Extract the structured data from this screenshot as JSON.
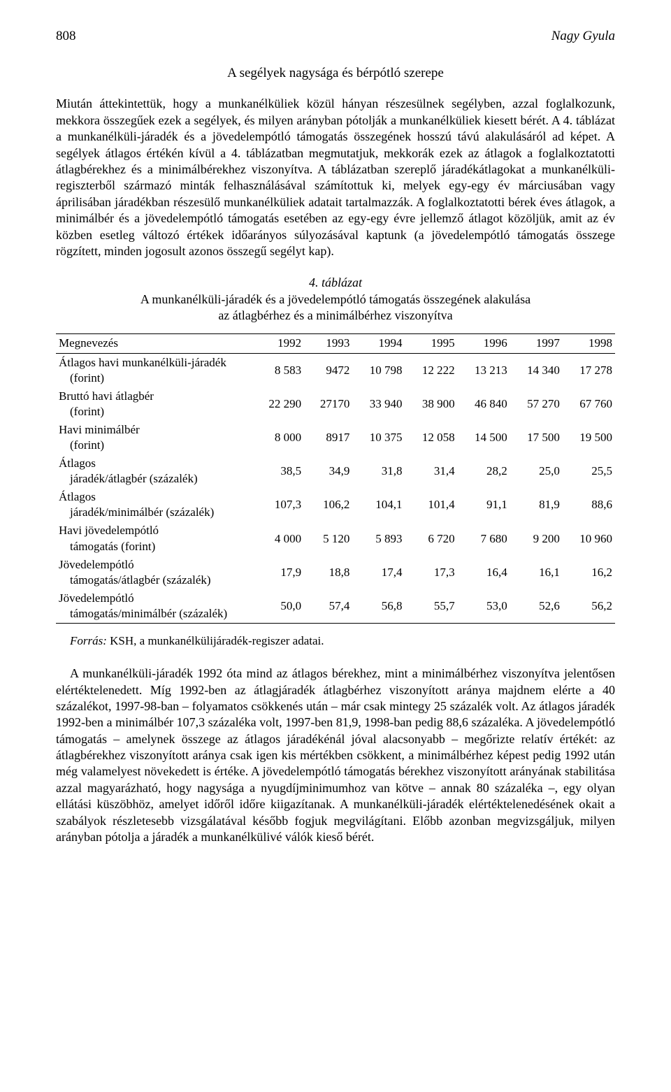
{
  "header": {
    "pageNumber": "808",
    "author": "Nagy Gyula"
  },
  "sectionTitle": "A segélyek nagysága és bérpótló szerepe",
  "para1": "Miután áttekintettük, hogy a munkanélküliek közül hányan részesülnek segélyben, azzal foglalkozunk, mekkora összegűek ezek a segélyek, és milyen arányban pótolják a munkanélküliek kiesett bérét. A 4. táblázat a munkanélküli-járadék és a jövedelempótló támogatás összegének hosszú távú alakulásáról ad képet. A segélyek átlagos értékén kívül a 4. táblázatban megmutatjuk, mekkorák ezek az átlagok a foglalkoztatotti átlagbérekhez és a minimálbérekhez viszonyítva. A táblázatban szereplő járadékátlagokat a munkanélküli-regiszterből származó minták felhasználásával számítottuk ki, melyek egy-egy év márciusában vagy áprilisában járadékban részesülő munkanélküliek adatait tartalmazzák. A foglalkoztatotti bérek éves átlagok, a minimálbér és a jövedelempótló támogatás esetében az egy-egy évre jellemző átlagot közöljük, amit az év közben esetleg változó értékek időarányos súlyozásával kaptunk (a jövedelempótló támogatás összege rögzített, minden jogosult azonos összegű segélyt kap).",
  "table": {
    "captionNum": "4. táblázat",
    "captionLine1": "A munkanélküli-járadék és a jövedelempótló támogatás összegének alakulása",
    "captionLine2": "az átlagbérhez és a minimálbérhez viszonyítva",
    "headerLabel": "Megnevezés",
    "years": [
      "1992",
      "1993",
      "1994",
      "1995",
      "1996",
      "1997",
      "1998"
    ],
    "rows": [
      {
        "label": "Átlagos havi munkanélküli-járadék",
        "sub": "(forint)",
        "vals": [
          "8 583",
          "9472",
          "10 798",
          "12 222",
          "13 213",
          "14 340",
          "17 278"
        ]
      },
      {
        "label": "Bruttó havi átlagbér",
        "sub": "(forint)",
        "vals": [
          "22 290",
          "27170",
          "33 940",
          "38 900",
          "46 840",
          "57 270",
          "67 760"
        ]
      },
      {
        "label": "Havi minimálbér",
        "sub": "(forint)",
        "vals": [
          "8 000",
          "8917",
          "10 375",
          "12 058",
          "14 500",
          "17 500",
          "19 500"
        ]
      },
      {
        "label": "Átlagos",
        "sub": "járadék/átlagbér (százalék)",
        "vals": [
          "38,5",
          "34,9",
          "31,8",
          "31,4",
          "28,2",
          "25,0",
          "25,5"
        ]
      },
      {
        "label": "Átlagos",
        "sub": "járadék/minimálbér (százalék)",
        "vals": [
          "107,3",
          "106,2",
          "104,1",
          "101,4",
          "91,1",
          "81,9",
          "88,6"
        ]
      },
      {
        "label": "Havi jövedelempótló",
        "sub": "támogatás (forint)",
        "vals": [
          "4 000",
          "5 120",
          "5 893",
          "6 720",
          "7 680",
          "9 200",
          "10 960"
        ]
      },
      {
        "label": "Jövedelempótló",
        "sub": "támogatás/átlagbér (százalék)",
        "vals": [
          "17,9",
          "18,8",
          "17,4",
          "17,3",
          "16,4",
          "16,1",
          "16,2"
        ]
      },
      {
        "label": "Jövedelempótló",
        "sub": "támogatás/minimálbér (százalék)",
        "vals": [
          "50,0",
          "57,4",
          "56,8",
          "55,7",
          "53,0",
          "52,6",
          "56,2"
        ]
      }
    ]
  },
  "sourceLabel": "Forrás:",
  "sourceText": " KSH, a munkanélkülijáradék-regiszer adatai.",
  "para2": "A munkanélküli-járadék 1992 óta mind az átlagos bérekhez, mint a minimálbérhez viszonyítva jelentősen elértéktelenedett. Míg 1992-ben az átlagjáradék átlagbérhez viszonyított aránya majdnem elérte a 40 százalékot, 1997-98-ban – folyamatos csökkenés után – már csak mintegy 25 százalék volt. Az átlagos járadék 1992-ben a minimálbér 107,3 százaléka volt, 1997-ben 81,9, 1998-ban pedig 88,6 százaléka. A jövedelempótló támogatás – amelynek összege az átlagos járadékénál jóval alacsonyabb – megőrizte relatív értékét: az átlagbérekhez viszonyított aránya csak igen kis mértékben csökkent, a minimálbérhez képest pedig 1992 után még valamelyest növekedett is értéke. A jövedelempótló támogatás bérekhez viszonyított arányának stabilitása azzal magyarázható, hogy nagysága a nyugdíjminimumhoz van kötve – annak 80 százaléka –, egy olyan ellátási küszöbhöz, amelyet időről időre kiigazítanak. A munkanélküli-járadék elértéktelenedésének okait a szabályok részletesebb vizsgálatával később fogjuk megvilágítani. Előbb azonban megvizsgáljuk, milyen arányban pótolja a járadék a munkanélkülivé válók kieső bérét."
}
